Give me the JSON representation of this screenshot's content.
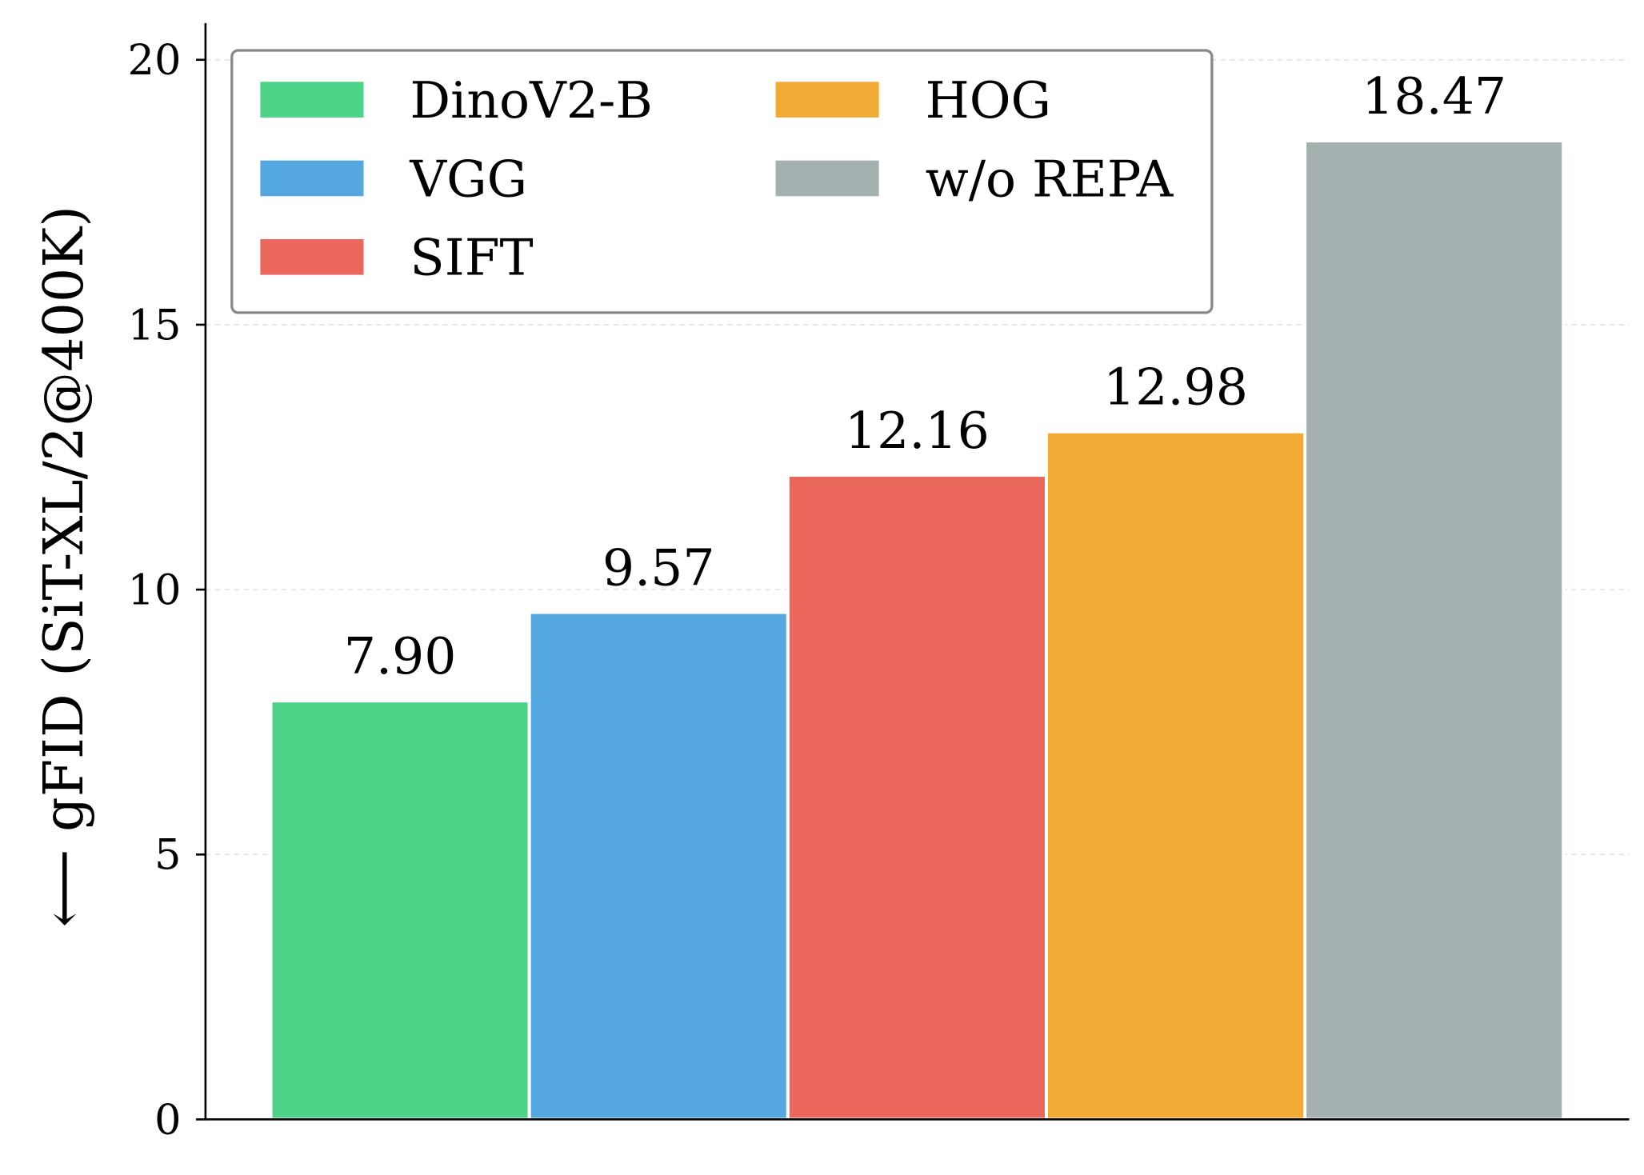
{
  "chart_data": {
    "type": "bar",
    "title": "",
    "xlabel": "",
    "ylabel": "⟵ gFID (SiT-XL/2@400K)",
    "ylim": [
      0,
      20.7
    ],
    "yticks": [
      "0",
      "5",
      "10",
      "15",
      "20"
    ],
    "grid": "horizontal dashed",
    "legend_placement": "top-left",
    "legend_columns": 2,
    "series": [
      {
        "name": "DinoV2-B",
        "value": 7.9,
        "label": "7.90",
        "color": "#4dd288"
      },
      {
        "name": "VGG",
        "value": 9.57,
        "label": "9.57",
        "color": "#54a8df"
      },
      {
        "name": "SIFT",
        "value": 12.16,
        "label": "12.16",
        "color": "#ec675b"
      },
      {
        "name": "HOG",
        "value": 12.98,
        "label": "12.98",
        "color": "#f2aa36"
      },
      {
        "name": "w/o REPA",
        "value": 18.47,
        "label": "18.47",
        "color": "#a5b1b1"
      }
    ]
  }
}
